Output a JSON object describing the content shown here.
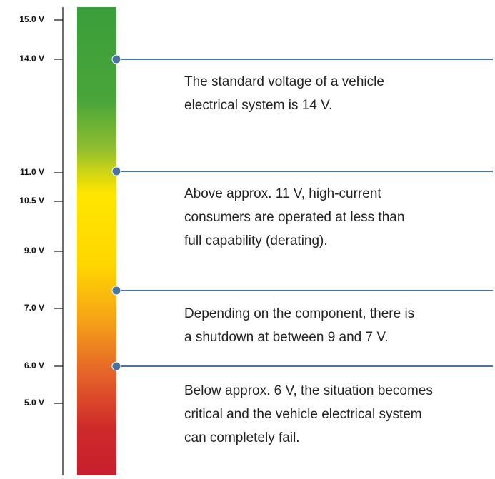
{
  "scale": {
    "ticks": [
      "15.0 V",
      "14.0 V",
      "11.0 V",
      "10.5 V",
      "9.0 V",
      "7.0 V",
      "6.0 V",
      "5.0 V"
    ]
  },
  "annotations": [
    {
      "lines": [
        "The standard voltage of a vehicle",
        "electrical system is 14 V."
      ]
    },
    {
      "lines": [
        "Above approx. 11 V, high-current",
        "consumers are operated at less than",
        "full capability (derating)."
      ]
    },
    {
      "lines": [
        "Depending on the component, there is",
        "a shutdown at between 9 and 7 V."
      ]
    },
    {
      "lines": [
        "Below approx. 6 V, the situation becomes",
        "critical and the vehicle electrical system",
        "can completely fail."
      ]
    }
  ]
}
